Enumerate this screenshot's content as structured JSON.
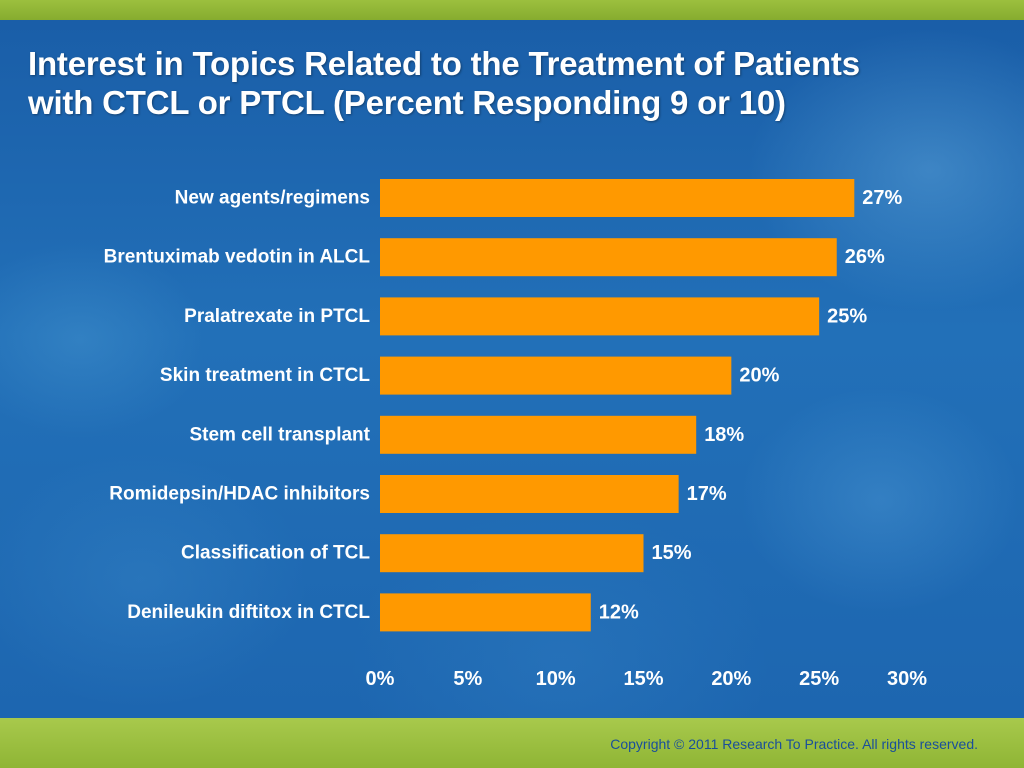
{
  "slide": {
    "title_line1": "Interest in Topics Related to the Treatment of Patients",
    "title_line2": "with CTCL or PTCL (Percent Responding 9 or 10)",
    "copyright": "Copyright © 2011 Research To Practice. All rights reserved."
  },
  "colors": {
    "bar": "#FF9900",
    "text": "#FFFFFF",
    "background": "#1F6AB4",
    "accent_green": "#8DB33A"
  },
  "chart_data": {
    "type": "bar",
    "orientation": "horizontal",
    "title": "",
    "xlabel": "",
    "ylabel": "",
    "categories": [
      "New agents/regimens",
      "Brentuximab vedotin in ALCL",
      "Pralatrexate in PTCL",
      "Skin treatment in CTCL",
      "Stem cell transplant",
      "Romidepsin/HDAC inhibitors",
      "Classification of TCL",
      "Denileukin diftitox in CTCL"
    ],
    "values": [
      27,
      26,
      25,
      20,
      18,
      17,
      15,
      12
    ],
    "value_labels": [
      "27%",
      "26%",
      "25%",
      "20%",
      "18%",
      "17%",
      "15%",
      "12%"
    ],
    "xlim": [
      0,
      30
    ],
    "xticks": [
      0,
      5,
      10,
      15,
      20,
      25,
      30
    ],
    "xtick_labels": [
      "0%",
      "5%",
      "10%",
      "15%",
      "20%",
      "25%",
      "30%"
    ],
    "grid": false,
    "legend": "none"
  }
}
